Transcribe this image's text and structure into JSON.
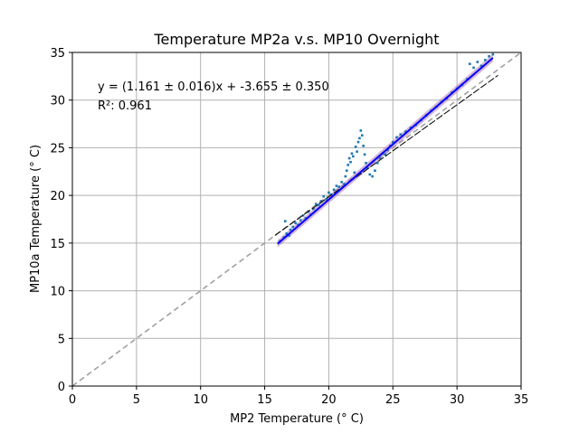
{
  "chart_data": {
    "type": "scatter",
    "title": "Temperature MP2a v.s. MP10 Overnight",
    "xlabel": "MP2 Temperature (° C)",
    "ylabel": "MP10a Temperature (° C)",
    "xlim": [
      0,
      35
    ],
    "ylim": [
      0,
      35
    ],
    "xticks": [
      "0",
      "5",
      "10",
      "15",
      "20",
      "25",
      "30",
      "35"
    ],
    "yticks": [
      "0",
      "5",
      "10",
      "15",
      "20",
      "25",
      "30",
      "35"
    ],
    "grid": true,
    "annotations": [
      "y = (1.161 ± 0.016)x + -3.655 ± 0.350",
      "R²: 0.961"
    ],
    "colors": {
      "points": "#1f77b4",
      "fit": "#0000ff",
      "band": "#b07ab8",
      "identity": "#a0a0a0",
      "reference": "#000000",
      "grid": "#b0b0b0"
    },
    "identity_line": {
      "x": [
        0,
        35
      ],
      "y": [
        0,
        35
      ]
    },
    "fit_line": {
      "slope": 1.161,
      "intercept": -3.655,
      "x": [
        16,
        32.8
      ]
    },
    "reference_line": {
      "x": [
        15.8,
        33.2
      ],
      "y": [
        15.8,
        32.6
      ]
    },
    "points": [
      {
        "x": 16.2,
        "y": 15.2
      },
      {
        "x": 16.5,
        "y": 15.6
      },
      {
        "x": 16.7,
        "y": 16.0
      },
      {
        "x": 16.9,
        "y": 15.8
      },
      {
        "x": 17.0,
        "y": 16.4
      },
      {
        "x": 17.2,
        "y": 16.7
      },
      {
        "x": 16.6,
        "y": 17.3
      },
      {
        "x": 17.4,
        "y": 17.1
      },
      {
        "x": 17.6,
        "y": 16.9
      },
      {
        "x": 17.8,
        "y": 17.4
      },
      {
        "x": 18.0,
        "y": 17.9
      },
      {
        "x": 18.2,
        "y": 17.6
      },
      {
        "x": 18.4,
        "y": 18.3
      },
      {
        "x": 18.6,
        "y": 18.0
      },
      {
        "x": 18.8,
        "y": 18.6
      },
      {
        "x": 19.0,
        "y": 19.1
      },
      {
        "x": 19.2,
        "y": 19.0
      },
      {
        "x": 19.4,
        "y": 19.4
      },
      {
        "x": 19.6,
        "y": 19.9
      },
      {
        "x": 19.8,
        "y": 19.6
      },
      {
        "x": 20.0,
        "y": 20.3
      },
      {
        "x": 20.2,
        "y": 20.1
      },
      {
        "x": 20.4,
        "y": 20.6
      },
      {
        "x": 20.6,
        "y": 21.0
      },
      {
        "x": 20.8,
        "y": 20.9
      },
      {
        "x": 21.0,
        "y": 21.4
      },
      {
        "x": 21.2,
        "y": 21.2
      },
      {
        "x": 21.3,
        "y": 22.0
      },
      {
        "x": 21.4,
        "y": 22.6
      },
      {
        "x": 21.5,
        "y": 23.2
      },
      {
        "x": 21.6,
        "y": 23.9
      },
      {
        "x": 21.7,
        "y": 23.5
      },
      {
        "x": 21.8,
        "y": 24.4
      },
      {
        "x": 21.9,
        "y": 24.1
      },
      {
        "x": 22.0,
        "y": 22.4
      },
      {
        "x": 22.1,
        "y": 25.1
      },
      {
        "x": 22.2,
        "y": 24.6
      },
      {
        "x": 22.3,
        "y": 25.6
      },
      {
        "x": 22.4,
        "y": 26.0
      },
      {
        "x": 22.5,
        "y": 26.8
      },
      {
        "x": 22.6,
        "y": 26.3
      },
      {
        "x": 22.7,
        "y": 25.2
      },
      {
        "x": 22.8,
        "y": 24.3
      },
      {
        "x": 22.9,
        "y": 23.4
      },
      {
        "x": 23.0,
        "y": 22.9
      },
      {
        "x": 23.2,
        "y": 22.2
      },
      {
        "x": 23.4,
        "y": 22.0
      },
      {
        "x": 23.6,
        "y": 22.6
      },
      {
        "x": 23.8,
        "y": 23.4
      },
      {
        "x": 24.0,
        "y": 23.9
      },
      {
        "x": 24.2,
        "y": 24.4
      },
      {
        "x": 24.4,
        "y": 24.3
      },
      {
        "x": 24.6,
        "y": 24.8
      },
      {
        "x": 24.8,
        "y": 25.2
      },
      {
        "x": 25.0,
        "y": 25.6
      },
      {
        "x": 25.3,
        "y": 26.1
      },
      {
        "x": 25.6,
        "y": 26.4
      },
      {
        "x": 26.0,
        "y": 26.7
      },
      {
        "x": 26.4,
        "y": 27.1
      },
      {
        "x": 26.8,
        "y": 27.4
      },
      {
        "x": 27.2,
        "y": 27.9
      },
      {
        "x": 27.6,
        "y": 28.4
      },
      {
        "x": 28.0,
        "y": 28.9
      },
      {
        "x": 28.4,
        "y": 29.3
      },
      {
        "x": 28.8,
        "y": 29.8
      },
      {
        "x": 29.2,
        "y": 30.2
      },
      {
        "x": 29.6,
        "y": 30.8
      },
      {
        "x": 30.0,
        "y": 31.2
      },
      {
        "x": 30.4,
        "y": 31.6
      },
      {
        "x": 30.8,
        "y": 32.2
      },
      {
        "x": 31.0,
        "y": 33.8
      },
      {
        "x": 31.3,
        "y": 33.4
      },
      {
        "x": 31.6,
        "y": 34.0
      },
      {
        "x": 31.9,
        "y": 33.6
      },
      {
        "x": 32.2,
        "y": 34.2
      },
      {
        "x": 32.5,
        "y": 34.6
      },
      {
        "x": 32.8,
        "y": 34.8
      }
    ]
  }
}
